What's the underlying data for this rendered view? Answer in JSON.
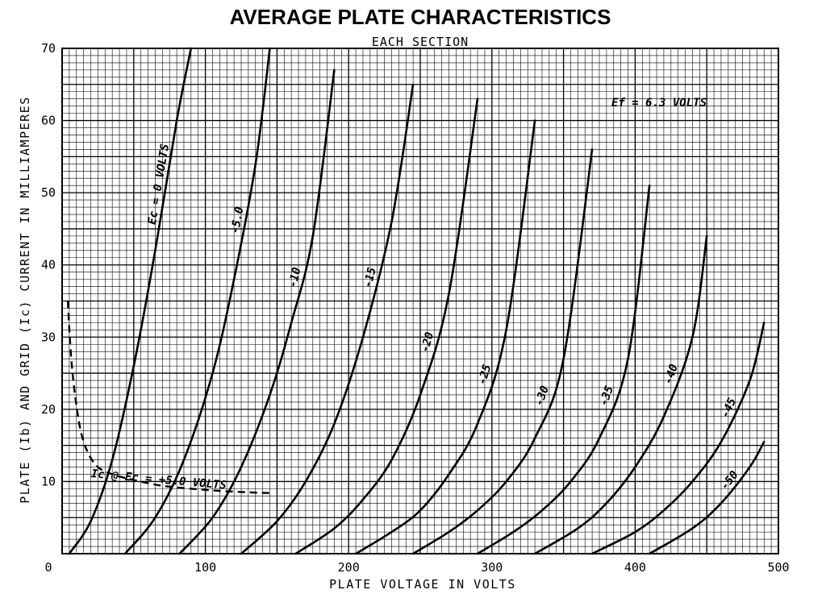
{
  "chart_data": {
    "type": "line",
    "title": "AVERAGE PLATE CHARACTERISTICS",
    "subtitle": "EACH SECTION",
    "xlabel": "PLATE VOLTAGE IN VOLTS",
    "ylabel": "PLATE (Ib) AND GRID (Ic) CURRENT IN MILLIAMPERES",
    "xlim": [
      0,
      500
    ],
    "ylim": [
      0,
      70
    ],
    "x_ticks": [
      "0",
      "100",
      "200",
      "300",
      "400",
      "500"
    ],
    "y_ticks": [
      "10",
      "20",
      "30",
      "40",
      "50",
      "60",
      "70"
    ],
    "grid": true,
    "heater_note": "Ef = 6.3 VOLTS",
    "series": [
      {
        "name": "Ec = 0 VOLTS",
        "x": [
          5,
          20,
          35,
          50,
          65,
          80,
          90
        ],
        "y": [
          0,
          4.5,
          13,
          26,
          42,
          60,
          70
        ]
      },
      {
        "name": "-5.0",
        "x": [
          44,
          65,
          85,
          105,
          120,
          135,
          145
        ],
        "y": [
          0,
          5,
          13,
          25,
          38,
          54,
          70
        ]
      },
      {
        "name": "-10",
        "x": [
          82,
          105,
          125,
          145,
          160,
          175,
          190
        ],
        "y": [
          0,
          5,
          12,
          22,
          32,
          44,
          67
        ]
      },
      {
        "name": "-15",
        "x": [
          125,
          150,
          170,
          190,
          210,
          230,
          245
        ],
        "y": [
          0,
          4.5,
          10,
          18,
          30,
          46,
          65
        ]
      },
      {
        "name": "-20",
        "x": [
          163,
          190,
          210,
          230,
          250,
          270,
          290
        ],
        "y": [
          0,
          3.5,
          7.5,
          13,
          22,
          36,
          63
        ]
      },
      {
        "name": "-25",
        "x": [
          205,
          230,
          250,
          270,
          290,
          310,
          330
        ],
        "y": [
          0,
          3,
          6,
          11,
          18,
          31,
          60
        ]
      },
      {
        "name": "-30",
        "x": [
          245,
          270,
          290,
          310,
          330,
          350,
          370
        ],
        "y": [
          0,
          3,
          6,
          10,
          16,
          27,
          56
        ]
      },
      {
        "name": "-35",
        "x": [
          290,
          315,
          335,
          355,
          375,
          395,
          410
        ],
        "y": [
          0,
          3,
          6,
          10,
          16,
          27,
          51
        ]
      },
      {
        "name": "-40",
        "x": [
          330,
          360,
          380,
          400,
          420,
          440,
          450
        ],
        "y": [
          0,
          3.5,
          7,
          12,
          19,
          30,
          44
        ]
      },
      {
        "name": "-45",
        "x": [
          370,
          400,
          420,
          440,
          460,
          480,
          490
        ],
        "y": [
          0,
          3,
          6,
          10,
          15.5,
          24,
          32
        ]
      },
      {
        "name": "-50",
        "x": [
          410,
          440,
          460,
          480,
          490
        ],
        "y": [
          0,
          3.5,
          7,
          12,
          15.5
        ]
      }
    ],
    "grid_current": {
      "name": "Ic @ Ec = +5.0 VOLTS",
      "x": [
        4,
        6,
        9,
        13,
        18,
        25,
        35,
        50,
        70,
        90,
        110,
        130,
        145
      ],
      "y": [
        35,
        28,
        22,
        17,
        14,
        12,
        11,
        10.2,
        9.4,
        9,
        8.7,
        8.5,
        8.4
      ]
    }
  }
}
